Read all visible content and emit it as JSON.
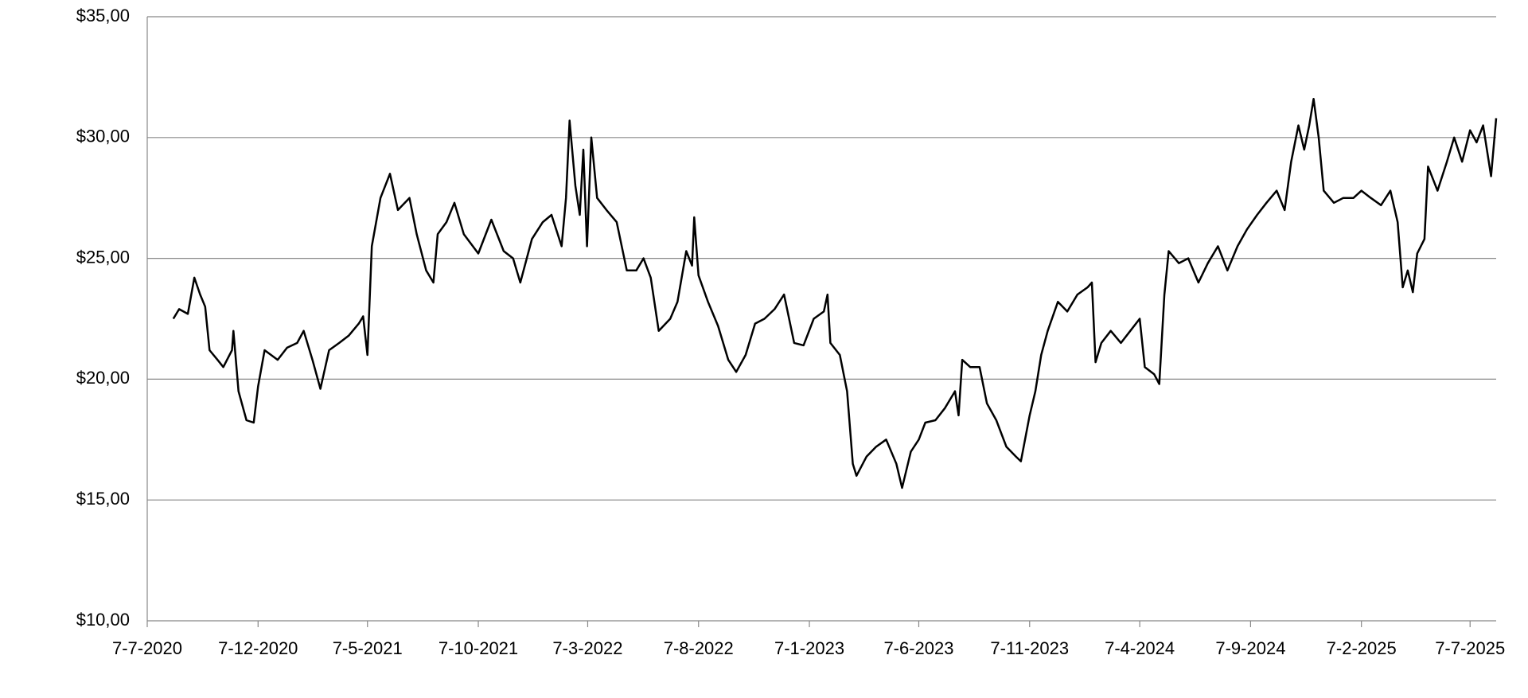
{
  "chart_data": {
    "type": "line",
    "color": "#000000",
    "grid": true,
    "xlim": [
      "2020-07-07",
      "2025-08-12"
    ],
    "xticks": [
      {
        "value": "2020-07-07",
        "label": "7-7-2020"
      },
      {
        "value": "2020-12-07",
        "label": "7-12-2020"
      },
      {
        "value": "2021-05-07",
        "label": "7-5-2021"
      },
      {
        "value": "2021-10-07",
        "label": "7-10-2021"
      },
      {
        "value": "2022-03-07",
        "label": "7-3-2022"
      },
      {
        "value": "2022-08-07",
        "label": "7-8-2022"
      },
      {
        "value": "2023-01-07",
        "label": "7-1-2023"
      },
      {
        "value": "2023-06-07",
        "label": "7-6-2023"
      },
      {
        "value": "2023-11-07",
        "label": "7-11-2023"
      },
      {
        "value": "2024-04-07",
        "label": "7-4-2024"
      },
      {
        "value": "2024-09-07",
        "label": "7-9-2024"
      },
      {
        "value": "2025-02-07",
        "label": "7-2-2025"
      },
      {
        "value": "2025-07-07",
        "label": "7-7-2025"
      }
    ],
    "ylim": [
      10,
      35
    ],
    "yticks": [
      {
        "value": 10,
        "label": "$10,00"
      },
      {
        "value": 15,
        "label": "$15,00"
      },
      {
        "value": 20,
        "label": "$20,00"
      },
      {
        "value": 25,
        "label": "$25,00"
      },
      {
        "value": 30,
        "label": "$30,00"
      },
      {
        "value": 35,
        "label": "$35,00"
      }
    ],
    "x": [
      "2020-08-12",
      "2020-08-20",
      "2020-09-01",
      "2020-09-10",
      "2020-09-18",
      "2020-09-25",
      "2020-10-01",
      "2020-10-12",
      "2020-10-20",
      "2020-11-01",
      "2020-11-03",
      "2020-11-10",
      "2020-11-21",
      "2020-12-01",
      "2020-12-07",
      "2020-12-16",
      "2021-01-03",
      "2021-01-16",
      "2021-01-30",
      "2021-02-08",
      "2021-02-20",
      "2021-03-03",
      "2021-03-15",
      "2021-03-29",
      "2021-04-11",
      "2021-04-25",
      "2021-05-01",
      "2021-05-07",
      "2021-05-13",
      "2021-05-25",
      "2021-06-07",
      "2021-06-18",
      "2021-07-04",
      "2021-07-14",
      "2021-07-27",
      "2021-08-06",
      "2021-08-12",
      "2021-08-24",
      "2021-09-04",
      "2021-09-17",
      "2021-10-07",
      "2021-10-25",
      "2021-11-11",
      "2021-11-24",
      "2021-12-04",
      "2021-12-20",
      "2022-01-04",
      "2022-01-16",
      "2022-01-30",
      "2022-02-05",
      "2022-02-10",
      "2022-02-18",
      "2022-02-24",
      "2022-03-01",
      "2022-03-06",
      "2022-03-12",
      "2022-03-20",
      "2022-04-02",
      "2022-04-16",
      "2022-04-30",
      "2022-05-13",
      "2022-05-23",
      "2022-06-02",
      "2022-06-13",
      "2022-06-29",
      "2022-07-09",
      "2022-07-21",
      "2022-07-29",
      "2022-08-01",
      "2022-08-07",
      "2022-08-20",
      "2022-09-03",
      "2022-09-17",
      "2022-09-28",
      "2022-10-11",
      "2022-10-24",
      "2022-11-06",
      "2022-11-20",
      "2022-12-03",
      "2022-12-17",
      "2022-12-30",
      "2023-01-13",
      "2023-01-27",
      "2023-02-01",
      "2023-02-05",
      "2023-02-18",
      "2023-02-28",
      "2023-03-08",
      "2023-03-13",
      "2023-03-27",
      "2023-04-09",
      "2023-04-23",
      "2023-05-07",
      "2023-05-15",
      "2023-05-27",
      "2023-06-07",
      "2023-06-16",
      "2023-06-30",
      "2023-07-13",
      "2023-07-27",
      "2023-08-01",
      "2023-08-06",
      "2023-08-17",
      "2023-08-30",
      "2023-09-09",
      "2023-09-22",
      "2023-10-06",
      "2023-10-19",
      "2023-10-26",
      "2023-11-07",
      "2023-11-15",
      "2023-11-23",
      "2023-12-02",
      "2023-12-16",
      "2023-12-29",
      "2024-01-12",
      "2024-01-26",
      "2024-02-01",
      "2024-02-06",
      "2024-02-14",
      "2024-02-27",
      "2024-03-12",
      "2024-03-25",
      "2024-04-07",
      "2024-04-14",
      "2024-04-27",
      "2024-05-04",
      "2024-05-11",
      "2024-05-17",
      "2024-05-31",
      "2024-06-13",
      "2024-06-27",
      "2024-07-10",
      "2024-07-24",
      "2024-08-06",
      "2024-08-20",
      "2024-09-02",
      "2024-09-16",
      "2024-09-29",
      "2024-10-13",
      "2024-10-24",
      "2024-11-02",
      "2024-11-12",
      "2024-11-20",
      "2024-11-27",
      "2024-12-03",
      "2024-12-10",
      "2024-12-17",
      "2024-12-31",
      "2025-01-13",
      "2025-01-27",
      "2025-02-07",
      "2025-02-20",
      "2025-03-06",
      "2025-03-19",
      "2025-03-29",
      "2025-04-05",
      "2025-04-12",
      "2025-04-19",
      "2025-04-25",
      "2025-05-05",
      "2025-05-10",
      "2025-05-23",
      "2025-06-05",
      "2025-06-15",
      "2025-06-26",
      "2025-07-07",
      "2025-07-16",
      "2025-07-25",
      "2025-08-05",
      "2025-08-12"
    ],
    "values": [
      22.5,
      22.9,
      22.7,
      24.2,
      23.5,
      23.0,
      21.2,
      20.8,
      20.5,
      21.2,
      22.0,
      19.5,
      18.3,
      18.2,
      19.7,
      21.2,
      20.8,
      21.3,
      21.5,
      22.0,
      20.8,
      19.6,
      21.2,
      21.5,
      21.8,
      22.3,
      22.6,
      21.0,
      25.5,
      27.5,
      28.5,
      27.0,
      27.5,
      26.0,
      24.5,
      24.0,
      26.0,
      26.5,
      27.3,
      26.0,
      25.2,
      26.6,
      25.3,
      25.0,
      24.0,
      25.8,
      26.5,
      26.8,
      25.5,
      27.5,
      30.7,
      28.0,
      26.8,
      29.5,
      25.5,
      30.0,
      27.5,
      27.0,
      26.5,
      24.5,
      24.5,
      25.0,
      24.2,
      22.0,
      22.5,
      23.2,
      25.3,
      24.7,
      26.7,
      24.3,
      23.2,
      22.2,
      20.8,
      20.3,
      21.0,
      22.3,
      22.5,
      22.9,
      23.5,
      21.5,
      21.4,
      22.5,
      22.8,
      23.5,
      21.5,
      21.0,
      19.5,
      16.5,
      16.0,
      16.8,
      17.2,
      17.5,
      16.5,
      15.5,
      17.0,
      17.5,
      18.2,
      18.3,
      18.8,
      19.5,
      18.5,
      20.8,
      20.5,
      20.5,
      19.0,
      18.3,
      17.2,
      16.8,
      16.6,
      18.5,
      19.5,
      21.0,
      22.0,
      23.2,
      22.8,
      23.5,
      23.8,
      24.0,
      20.7,
      21.5,
      22.0,
      21.5,
      22.0,
      22.5,
      20.5,
      20.2,
      19.8,
      23.5,
      25.3,
      24.8,
      25.0,
      24.0,
      24.8,
      25.5,
      24.5,
      25.5,
      26.2,
      26.8,
      27.3,
      27.8,
      27.0,
      29.0,
      30.5,
      29.5,
      30.5,
      31.6,
      30.0,
      27.8,
      27.3,
      27.5,
      27.5,
      27.8,
      27.5,
      27.2,
      27.8,
      26.5,
      23.8,
      24.5,
      23.6,
      25.2,
      25.8,
      28.8,
      27.8,
      29.0,
      30.0,
      29.0,
      30.3,
      29.8,
      30.5,
      28.4,
      30.8
    ]
  }
}
